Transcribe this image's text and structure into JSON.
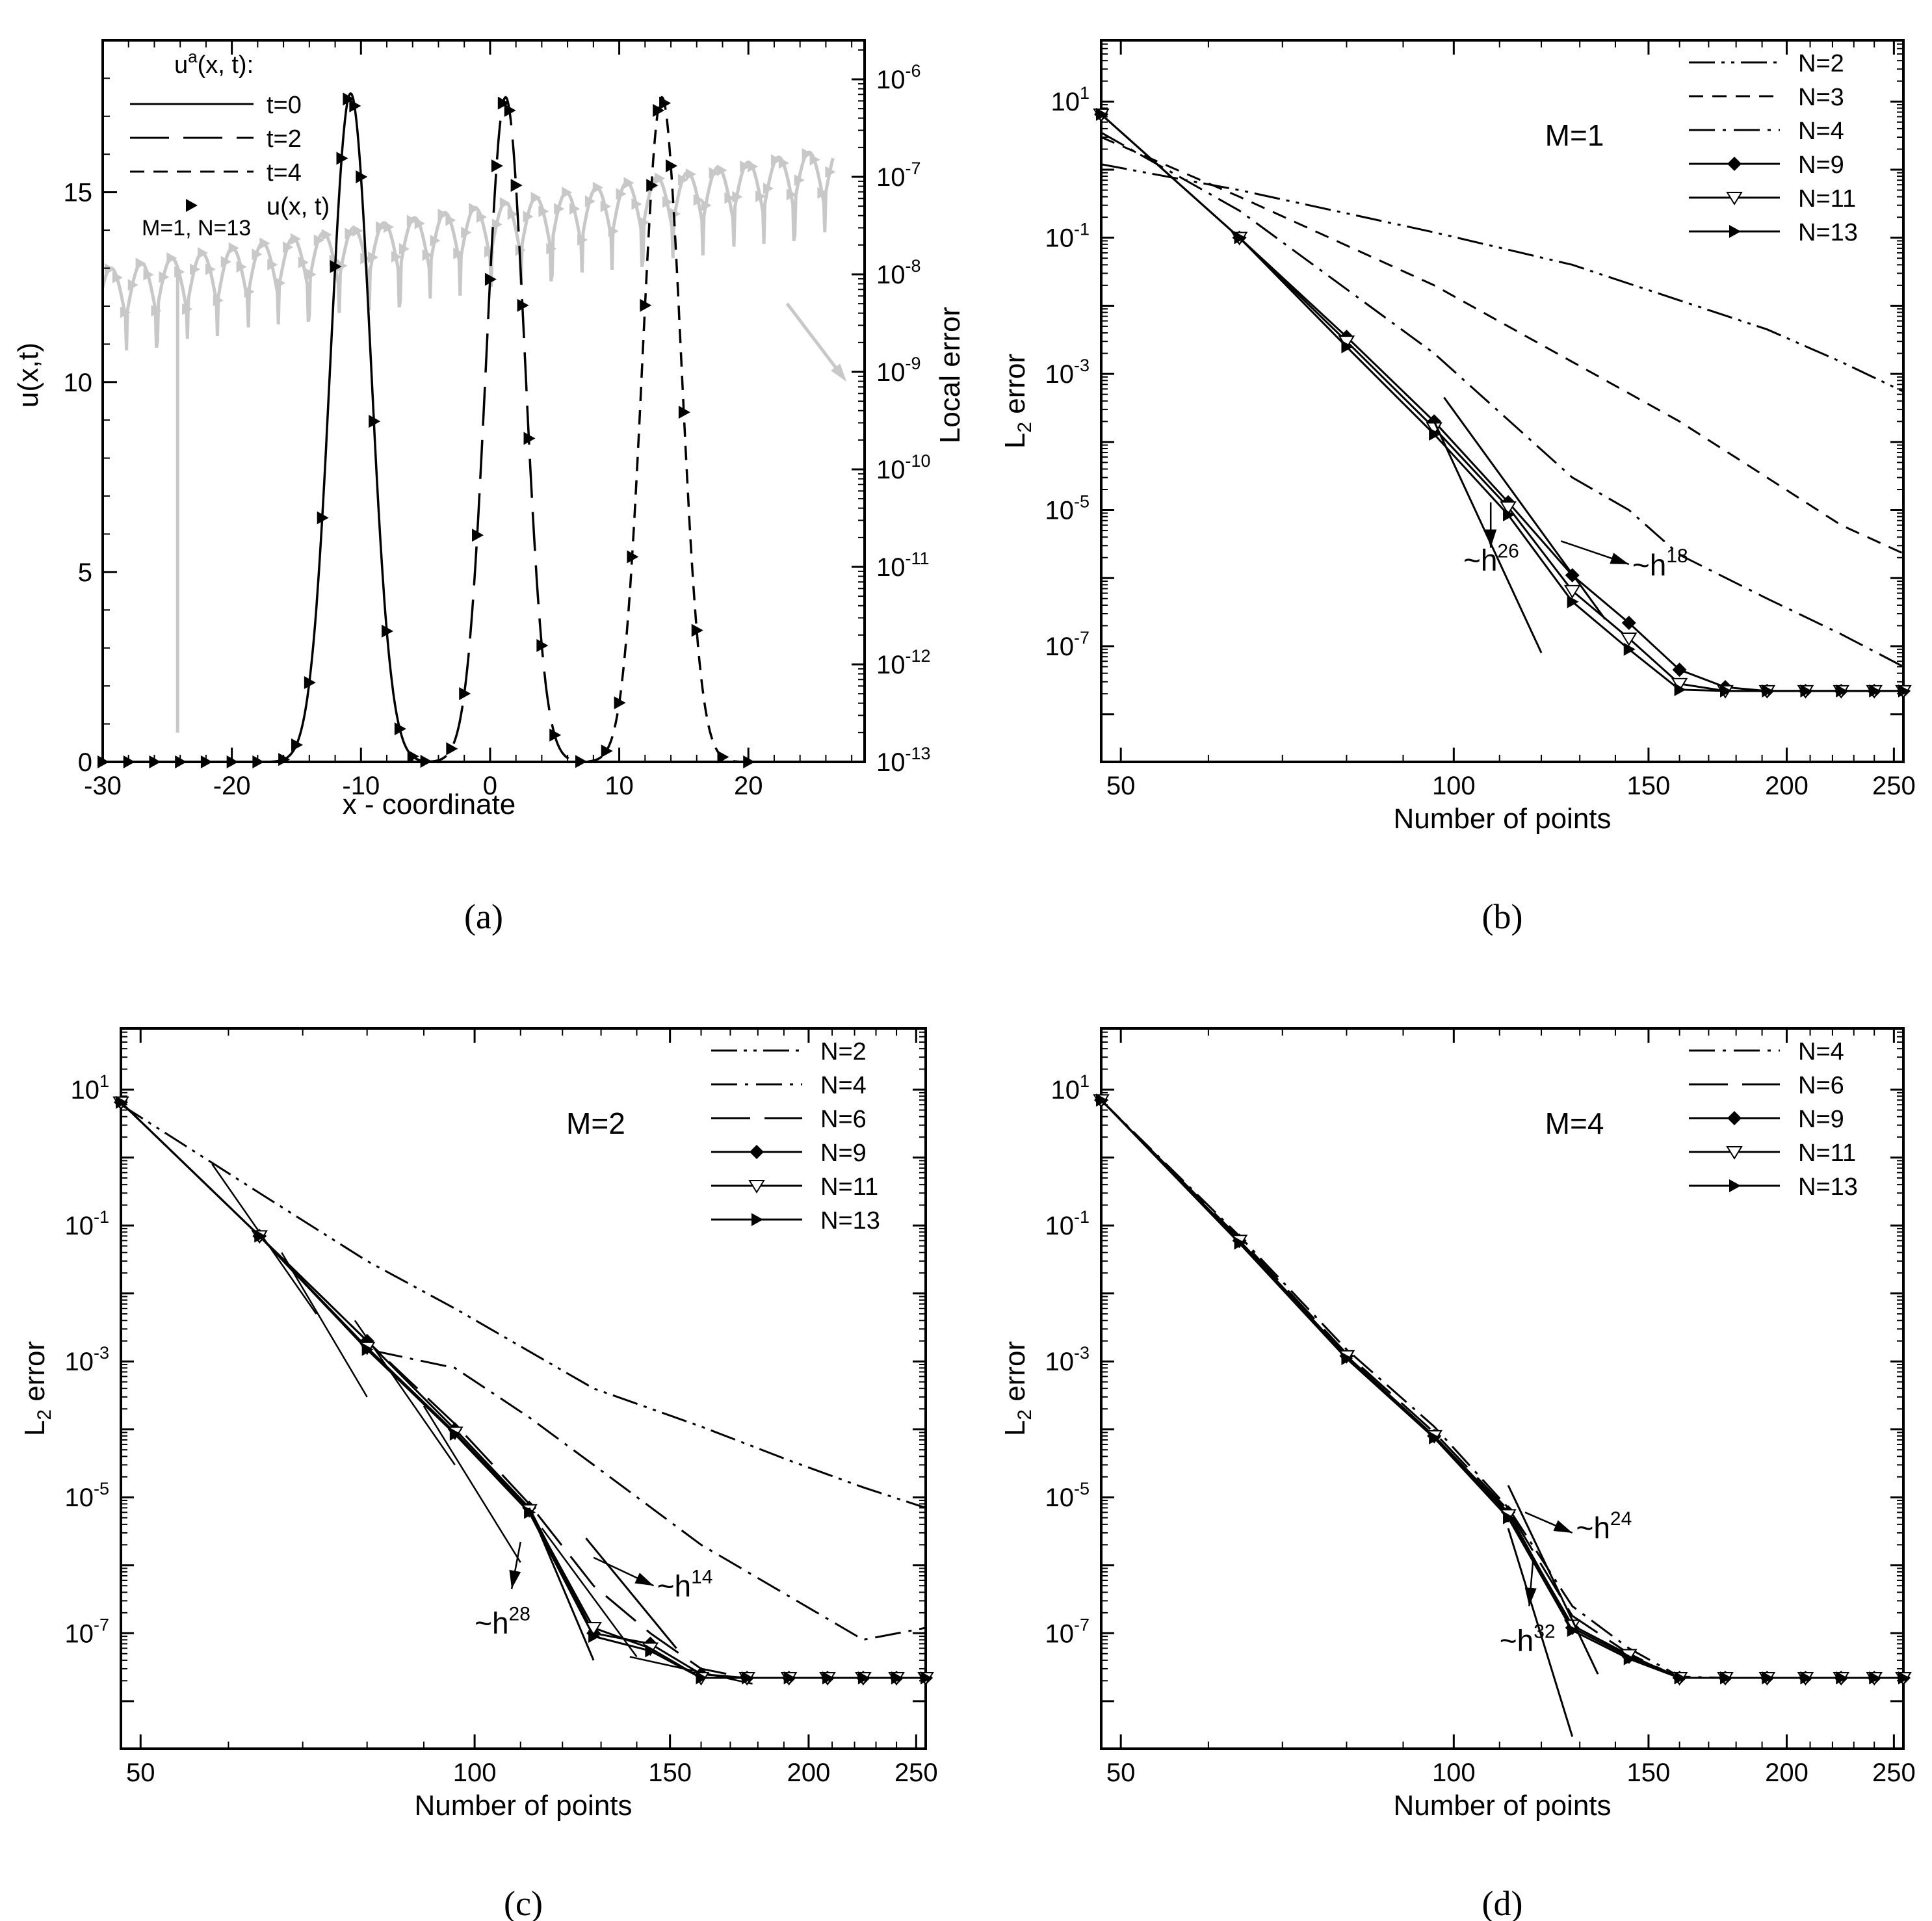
{
  "chart_data": [
    {
      "panel": "a",
      "caption": "(a)",
      "type": "line",
      "xlabel": "x - coordinate",
      "ylabel": "u(x,t)",
      "y2label": "Local error",
      "xlim": [
        -30,
        29
      ],
      "ylim": [
        0,
        19
      ],
      "y2lim_log": [
        -13,
        -5.6
      ],
      "xticks": [
        -30,
        -20,
        -10,
        0,
        10,
        20
      ],
      "xtick_labels": [
        "-30",
        "-20",
        "-10",
        "0",
        "10",
        "20"
      ],
      "yticks": [
        0,
        5,
        10,
        15
      ],
      "ytick_labels": [
        "0",
        "5",
        "10",
        "15"
      ],
      "y2ticks_exp": [
        -13,
        -12,
        -11,
        -10,
        -9,
        -8,
        -7,
        -6
      ],
      "y2tick_base": "10",
      "y2tick_exps": [
        "-13",
        "-12",
        "-11",
        "-10",
        "-9",
        "-8",
        "-7",
        "-6"
      ],
      "legend_title_main": "u",
      "legend_title_sup": "a",
      "legend_title_rest": "(x, t):",
      "legend": [
        {
          "label": "t=0",
          "style": "solid"
        },
        {
          "label": "t=2",
          "style": "longdash"
        },
        {
          "label": "t=4",
          "style": "dash"
        },
        {
          "label": "u(x, t)",
          "style": "marker"
        }
      ],
      "param_label": "M=1, N=13",
      "series": [
        {
          "name": "t=0",
          "style": "solid",
          "center": -10.8,
          "amp": 17.6,
          "width": 1.55
        },
        {
          "name": "t=2",
          "style": "longdash",
          "center": 1.2,
          "amp": 17.5,
          "width": 1.5
        },
        {
          "name": "t=4",
          "style": "dash",
          "center": 13.3,
          "amp": 17.5,
          "width": 1.5
        }
      ],
      "markers_x": [
        -30,
        -28,
        -26,
        -24,
        -22,
        -20,
        -18,
        -16,
        -15,
        -14,
        -13,
        -12,
        -11.5,
        -11,
        -10.5,
        -10,
        -9,
        -8,
        -7,
        -6,
        -5,
        -3,
        -2,
        -1,
        0,
        0.5,
        1,
        1.5,
        2,
        2.5,
        3,
        4,
        5,
        7,
        9,
        10,
        11,
        12,
        12.5,
        13,
        13.5,
        14,
        15,
        16,
        18,
        20
      ],
      "error_series_color": "#c8c8c8"
    },
    {
      "panel": "b",
      "caption": "(b)",
      "type": "line",
      "scale": "loglog",
      "xlabel": "Number of points",
      "ylabel_base": "L",
      "ylabel_sub": "2",
      "ylabel_rest": " error",
      "xlim": [
        48,
        255
      ],
      "ylim_log": [
        -8.7,
        1.9
      ],
      "xticks": [
        50,
        100,
        150,
        200,
        250
      ],
      "xtick_labels": [
        "50",
        "100",
        "150",
        "200",
        "250"
      ],
      "yticks_exp": [
        1,
        -1,
        -3,
        -5,
        -7
      ],
      "ytick_base": "10",
      "ytick_exps": [
        "1",
        "-1",
        "-3",
        "-5",
        "-7"
      ],
      "annotation": "M=1",
      "legend": [
        "N=2",
        "N=3",
        "N=4",
        "N=9",
        "N=11",
        "N=13"
      ],
      "series": [
        {
          "name": "N=2",
          "style": "dashdotdot",
          "x": [
            48,
            64,
            96,
            128,
            160,
            192,
            224,
            255
          ],
          "y": [
            1.2,
            0.5,
            0.12,
            0.04,
            0.012,
            0.0045,
            0.0015,
            0.00055
          ]
        },
        {
          "name": "N=3",
          "style": "dash",
          "x": [
            48,
            64,
            96,
            128,
            160,
            192,
            224,
            255
          ],
          "y": [
            3.0,
            0.4,
            0.02,
            0.0015,
            0.0002,
            3e-05,
            6e-06,
            2.3e-06
          ]
        },
        {
          "name": "N=4",
          "style": "dashdot",
          "x": [
            48,
            64,
            96,
            128,
            144,
            160,
            192,
            224,
            255
          ],
          "y": [
            3.5,
            0.25,
            0.002,
            3e-05,
            1e-05,
            2.2e-06,
            5e-07,
            1.5e-07,
            5e-08
          ]
        },
        {
          "name": "N=9",
          "style": "diamond",
          "x": [
            48,
            64,
            80,
            96,
            112,
            128,
            144,
            160,
            176,
            192,
            208,
            224,
            240,
            255
          ],
          "y": [
            6.5,
            0.1,
            0.0035,
            0.0002,
            1.3e-05,
            1.1e-06,
            2.2e-07,
            4.5e-08,
            2.5e-08,
            2.2e-08,
            2.2e-08,
            2.2e-08,
            2.2e-08,
            2.2e-08
          ]
        },
        {
          "name": "N=11",
          "style": "triangle-down",
          "x": [
            48,
            64,
            80,
            96,
            112,
            128,
            144,
            160,
            176,
            192,
            208,
            224,
            240,
            255
          ],
          "y": [
            6.5,
            0.1,
            0.003,
            0.00016,
            1.1e-05,
            6.5e-07,
            1.3e-07,
            2.8e-08,
            2.2e-08,
            2.2e-08,
            2.2e-08,
            2.2e-08,
            2.2e-08,
            2.2e-08
          ]
        },
        {
          "name": "N=13",
          "style": "triangle-right",
          "x": [
            48,
            64,
            80,
            96,
            112,
            128,
            144,
            160,
            176,
            192,
            208,
            224,
            240,
            255
          ],
          "y": [
            6.5,
            0.1,
            0.0025,
            0.00013,
            8.5e-06,
            4.5e-07,
            9e-08,
            2.3e-08,
            2.2e-08,
            2.2e-08,
            2.2e-08,
            2.2e-08,
            2.2e-08,
            2.2e-08
          ]
        }
      ],
      "slope_lines": [
        {
          "label_base": "~h",
          "label_exp": "26",
          "x": [
            96,
            120
          ],
          "y": [
            0.0002,
            8e-08
          ],
          "arrow_from": [
            108,
            1.3e-05
          ],
          "arrow_to": [
            108,
            2.8e-06
          ],
          "label_at": [
            102,
            1.3e-06
          ]
        },
        {
          "label_base": "~h",
          "label_exp": "18",
          "x": [
            98,
            137
          ],
          "y": [
            0.00045,
            2.5e-07
          ],
          "arrow_from": [
            125,
            3.5e-06
          ],
          "arrow_to": [
            144,
            1.6e-06
          ],
          "label_at": [
            145,
            1.1e-06
          ]
        }
      ]
    },
    {
      "panel": "c",
      "caption": "(c)",
      "type": "line",
      "scale": "loglog",
      "xlabel": "Number of points",
      "ylabel_base": "L",
      "ylabel_sub": "2",
      "ylabel_rest": " error",
      "xlim": [
        48,
        255
      ],
      "ylim_log": [
        -8.7,
        1.9
      ],
      "xticks": [
        50,
        100,
        150,
        200,
        250
      ],
      "xtick_labels": [
        "50",
        "100",
        "150",
        "200",
        "250"
      ],
      "yticks_exp": [
        1,
        -1,
        -3,
        -5,
        -7
      ],
      "ytick_base": "10",
      "ytick_exps": [
        "1",
        "-1",
        "-3",
        "-5",
        "-7"
      ],
      "annotation": "M=2",
      "legend": [
        "N=2",
        "N=4",
        "N=6",
        "N=9",
        "N=11",
        "N=13"
      ],
      "series": [
        {
          "name": "N=2",
          "style": "dashdotdot",
          "x": [
            48,
            64,
            80,
            96,
            128,
            160,
            192,
            224,
            255
          ],
          "y": [
            6.0,
            0.3,
            0.03,
            0.006,
            0.0004,
            0.00011,
            3.5e-05,
            1.4e-05,
            7e-06
          ]
        },
        {
          "name": "N=4",
          "style": "dashdot",
          "x": [
            48,
            64,
            80,
            96,
            112,
            128,
            160,
            192,
            224,
            255
          ],
          "y": [
            6.5,
            0.07,
            0.0015,
            0.0008,
            0.00015,
            3e-05,
            2e-06,
            3.5e-07,
            8e-08,
            1.2e-07
          ]
        },
        {
          "name": "N=6",
          "style": "longdash",
          "x": [
            48,
            64,
            80,
            96,
            112,
            128,
            144,
            160,
            176,
            192,
            208,
            224,
            240,
            255
          ],
          "y": [
            6.5,
            0.07,
            0.002,
            0.00012,
            8e-06,
            5e-07,
            1e-07,
            3e-08,
            2.2e-08,
            2.2e-08,
            2.2e-08,
            2.2e-08,
            2.2e-08,
            2.2e-08
          ]
        },
        {
          "name": "N=9",
          "style": "diamond",
          "x": [
            48,
            64,
            80,
            96,
            112,
            128,
            144,
            160,
            176,
            192,
            208,
            224,
            240,
            255
          ],
          "y": [
            6.5,
            0.07,
            0.002,
            0.0001,
            7e-06,
            1e-07,
            7e-08,
            2.5e-08,
            2.2e-08,
            2.2e-08,
            2.2e-08,
            2.2e-08,
            2.2e-08,
            2.2e-08
          ]
        },
        {
          "name": "N=11",
          "style": "triangle-down",
          "x": [
            48,
            64,
            80,
            96,
            112,
            128,
            144,
            160,
            176,
            192,
            208,
            224,
            240,
            255
          ],
          "y": [
            6.5,
            0.07,
            0.0016,
            9e-05,
            6.5e-06,
            1.2e-07,
            6e-08,
            2.2e-08,
            2.2e-08,
            2.2e-08,
            2.2e-08,
            2.2e-08,
            2.2e-08,
            2.2e-08
          ]
        },
        {
          "name": "N=13",
          "style": "triangle-right",
          "x": [
            48,
            64,
            80,
            96,
            112,
            128,
            144,
            160,
            176,
            192,
            208,
            224,
            240,
            255
          ],
          "y": [
            6.5,
            0.07,
            0.0015,
            8.5e-05,
            6e-06,
            9e-08,
            5.5e-08,
            2.2e-08,
            2.2e-08,
            2.2e-08,
            2.2e-08,
            2.2e-08,
            2.2e-08,
            2.2e-08
          ]
        }
      ],
      "slope_lines": [
        {
          "label_base": "~h",
          "label_exp": "28",
          "x": [
            112,
            128
          ],
          "y": [
            7e-06,
            4e-08
          ],
          "arrow_from": [
            110,
            2.2e-06
          ],
          "arrow_to": [
            108,
            4.5e-07
          ],
          "label_at": [
            100,
            1e-07
          ]
        },
        {
          "label_base": "~h",
          "label_exp": "14",
          "x": [
            126,
            152
          ],
          "y": [
            2.5e-06,
            6e-08
          ],
          "arrow_from": [
            128,
            1.3e-06
          ],
          "arrow_to": [
            145,
            5e-07
          ],
          "label_at": [
            146,
            3.5e-07
          ]
        }
      ],
      "guide_segments": [
        {
          "x": [
            58,
            72
          ],
          "y": [
            0.8,
            0.005
          ]
        },
        {
          "x": [
            67,
            80
          ],
          "y": [
            0.04,
            0.0003
          ]
        },
        {
          "x": [
            78,
            96
          ],
          "y": [
            0.004,
            3e-05
          ]
        },
        {
          "x": [
            90,
            110
          ],
          "y": [
            0.00022,
            1.1e-06
          ]
        },
        {
          "x": [
            115,
            140
          ],
          "y": [
            3.5e-06,
            4.5e-08
          ]
        },
        {
          "x": [
            138,
            178
          ],
          "y": [
            4.5e-08,
            1.8e-08
          ]
        }
      ]
    },
    {
      "panel": "d",
      "caption": "(d)",
      "type": "line",
      "scale": "loglog",
      "xlabel": "Number of points",
      "ylabel_base": "L",
      "ylabel_sub": "2",
      "ylabel_rest": " error",
      "xlim": [
        48,
        255
      ],
      "ylim_log": [
        -8.7,
        1.9
      ],
      "xticks": [
        50,
        100,
        150,
        200,
        250
      ],
      "xtick_labels": [
        "50",
        "100",
        "150",
        "200",
        "250"
      ],
      "yticks_exp": [
        1,
        -1,
        -3,
        -5,
        -7
      ],
      "ytick_base": "10",
      "ytick_exps": [
        "1",
        "-1",
        "-3",
        "-5",
        "-7"
      ],
      "annotation": "M=4",
      "legend": [
        "N=4",
        "N=6",
        "N=9",
        "N=11",
        "N=13"
      ],
      "series": [
        {
          "name": "N=4",
          "style": "dashdot",
          "x": [
            48,
            64,
            80,
            96,
            112,
            128,
            144,
            160,
            176,
            192,
            208,
            224,
            240,
            255
          ],
          "y": [
            7.0,
            0.07,
            0.0015,
            0.00011,
            7e-06,
            2.5e-07,
            6e-08,
            2.3e-08,
            2.2e-08,
            2.2e-08,
            2.2e-08,
            2.2e-08,
            2.2e-08,
            2.2e-08
          ]
        },
        {
          "name": "N=6",
          "style": "longdash",
          "x": [
            48,
            64,
            80,
            96,
            112,
            128,
            144,
            160,
            176,
            192,
            208,
            224,
            240,
            255
          ],
          "y": [
            7.0,
            0.065,
            0.0013,
            9e-05,
            6.5e-06,
            1.8e-07,
            5e-08,
            2.2e-08,
            2.2e-08,
            2.2e-08,
            2.2e-08,
            2.2e-08,
            2.2e-08,
            2.2e-08
          ]
        },
        {
          "name": "N=9",
          "style": "diamond",
          "x": [
            48,
            64,
            80,
            96,
            112,
            128,
            144,
            160,
            176,
            192,
            208,
            224,
            240,
            255
          ],
          "y": [
            7.0,
            0.06,
            0.0012,
            8e-05,
            6e-06,
            1.2e-07,
            4.5e-08,
            2.2e-08,
            2.2e-08,
            2.2e-08,
            2.2e-08,
            2.2e-08,
            2.2e-08,
            2.2e-08
          ]
        },
        {
          "name": "N=11",
          "style": "triangle-down",
          "x": [
            48,
            64,
            80,
            96,
            112,
            128,
            144,
            160,
            176,
            192,
            208,
            224,
            240,
            255
          ],
          "y": [
            7.0,
            0.06,
            0.0012,
            8e-05,
            5.5e-06,
            1.3e-07,
            4.8e-08,
            2.2e-08,
            2.2e-08,
            2.2e-08,
            2.2e-08,
            2.2e-08,
            2.2e-08,
            2.2e-08
          ]
        },
        {
          "name": "N=13",
          "style": "triangle-right",
          "x": [
            48,
            64,
            80,
            96,
            112,
            128,
            144,
            160,
            176,
            192,
            208,
            224,
            240,
            255
          ],
          "y": [
            7.0,
            0.055,
            0.0011,
            7.5e-05,
            5e-06,
            1.1e-07,
            4.2e-08,
            2.2e-08,
            2.2e-08,
            2.2e-08,
            2.2e-08,
            2.2e-08,
            2.2e-08,
            2.2e-08
          ]
        }
      ],
      "slope_lines": [
        {
          "label_base": "~h",
          "label_exp": "32",
          "x": [
            112,
            128
          ],
          "y": [
            3.5e-06,
            3e-09
          ],
          "arrow_from": [
            118,
            1.3e-06
          ],
          "arrow_to": [
            117,
            2.5e-07
          ],
          "label_at": [
            110,
            5.5e-08
          ]
        },
        {
          "label_base": "~h",
          "label_exp": "24",
          "x": [
            112,
            135
          ],
          "y": [
            1.5e-05,
            2.5e-08
          ],
          "arrow_from": [
            116,
            6e-06
          ],
          "arrow_to": [
            128,
            3e-06
          ],
          "label_at": [
            129,
            2.5e-06
          ]
        }
      ]
    }
  ]
}
